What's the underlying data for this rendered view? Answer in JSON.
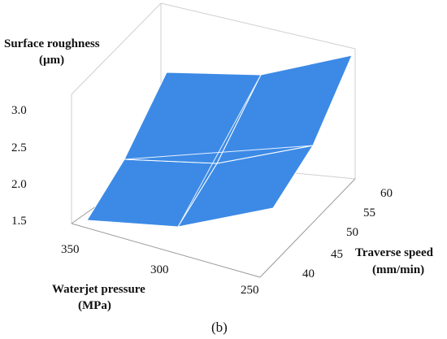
{
  "chart_data": {
    "type": "surface3d",
    "z_title_line1": "Surface roughness",
    "z_title_line2": "(µm)",
    "x_title_line1": "Waterjet pressure",
    "x_title_line2": "(MPa)",
    "y_title_line1": "Traverse speed",
    "y_title_line2": "(mm/min)",
    "z_ticks": [
      "3.0",
      "2.5",
      "2.0",
      "1.5"
    ],
    "x_ticks": [
      "350",
      "300",
      "250"
    ],
    "y_ticks": [
      "60",
      "55",
      "50",
      "45",
      "40"
    ],
    "x_range": [
      250,
      350
    ],
    "y_range": [
      40,
      60
    ],
    "x_values": [
      350,
      300,
      250
    ],
    "y_values": [
      40,
      50,
      60
    ],
    "z_grid": [
      [
        1.45,
        2.2,
        3.3
      ],
      [
        1.4,
        2.0,
        3.2
      ],
      [
        1.45,
        2.15,
        3.4
      ]
    ],
    "surface_color": "#3c8ae6",
    "caption": "(b)"
  }
}
